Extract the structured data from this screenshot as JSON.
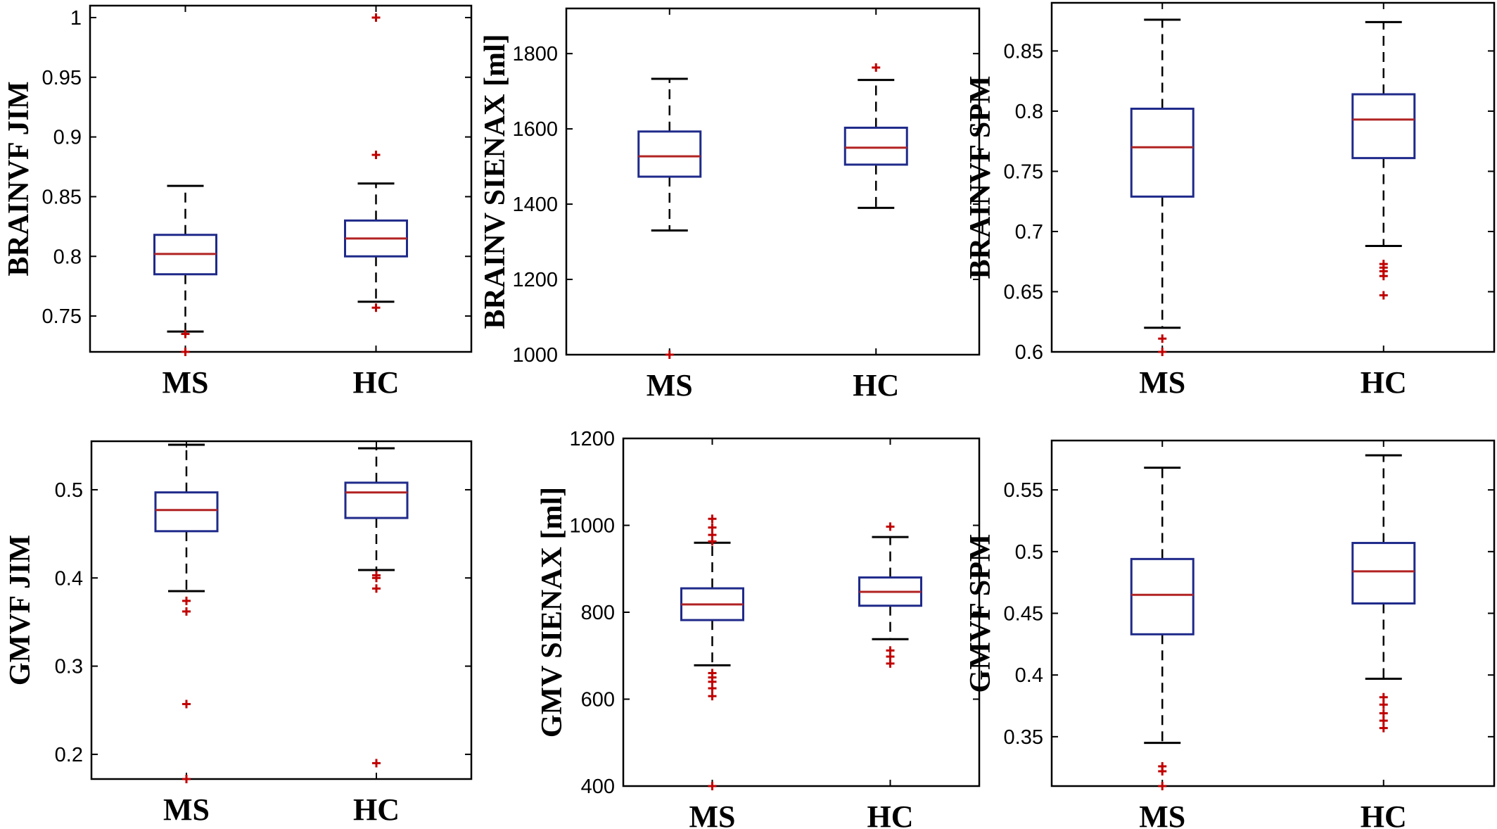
{
  "figure": {
    "colors": {
      "box": "#1f2a8a",
      "median": "#b22222",
      "whisker": "#000000",
      "outlier": "#c00000"
    }
  },
  "chart_data": [
    {
      "type": "box",
      "ylabel": "BRAINVF JIM",
      "ylim": [
        0.72,
        1.01
      ],
      "yticks": [
        0.75,
        0.8,
        0.85,
        0.9,
        0.95,
        1
      ],
      "ytick_labels": [
        "0.75",
        "0.8",
        "0.85",
        "0.9",
        "0.95",
        "1"
      ],
      "categories": [
        "MS",
        "HC"
      ],
      "boxes": [
        {
          "q1": 0.785,
          "median": 0.802,
          "q3": 0.818,
          "whisker_low": 0.737,
          "whisker_high": 0.859,
          "outliers": [
            0.735,
            0.72
          ]
        },
        {
          "q1": 0.8,
          "median": 0.815,
          "q3": 0.83,
          "whisker_low": 0.762,
          "whisker_high": 0.861,
          "outliers": [
            1.0,
            0.885,
            0.757
          ]
        }
      ]
    },
    {
      "type": "box",
      "ylabel": "BRAINV SIENAX [ml]",
      "ylim": [
        1000,
        1920
      ],
      "yticks": [
        1000,
        1200,
        1400,
        1600,
        1800
      ],
      "ytick_labels": [
        "1000",
        "1200",
        "1400",
        "1600",
        "1800"
      ],
      "categories": [
        "MS",
        "HC"
      ],
      "boxes": [
        {
          "q1": 1473,
          "median": 1527,
          "q3": 1593,
          "whisker_low": 1330,
          "whisker_high": 1733,
          "outliers": [
            1000
          ]
        },
        {
          "q1": 1505,
          "median": 1550,
          "q3": 1603,
          "whisker_low": 1390,
          "whisker_high": 1730,
          "outliers": [
            1763
          ]
        }
      ]
    },
    {
      "type": "box",
      "ylabel": "BRAINVF SPM",
      "ylim": [
        0.6,
        0.89
      ],
      "yticks": [
        0.6,
        0.65,
        0.7,
        0.75,
        0.8,
        0.85
      ],
      "ytick_labels": [
        "0.6",
        "0.65",
        "0.7",
        "0.75",
        "0.8",
        "0.85"
      ],
      "categories": [
        "MS",
        "HC"
      ],
      "boxes": [
        {
          "q1": 0.729,
          "median": 0.77,
          "q3": 0.802,
          "whisker_low": 0.62,
          "whisker_high": 0.876,
          "outliers": [
            0.611,
            0.6
          ]
        },
        {
          "q1": 0.761,
          "median": 0.793,
          "q3": 0.814,
          "whisker_low": 0.688,
          "whisker_high": 0.874,
          "outliers": [
            0.673,
            0.67,
            0.667,
            0.663,
            0.647
          ]
        }
      ]
    },
    {
      "type": "box",
      "ylabel": "GMVF JIM",
      "ylim": [
        0.172,
        0.555
      ],
      "yticks": [
        0.2,
        0.3,
        0.4,
        0.5
      ],
      "ytick_labels": [
        "0.2",
        "0.3",
        "0.4",
        "0.5"
      ],
      "categories": [
        "MS",
        "HC"
      ],
      "boxes": [
        {
          "q1": 0.453,
          "median": 0.477,
          "q3": 0.497,
          "whisker_low": 0.385,
          "whisker_high": 0.551,
          "outliers": [
            0.374,
            0.362,
            0.257,
            0.172
          ]
        },
        {
          "q1": 0.468,
          "median": 0.497,
          "q3": 0.508,
          "whisker_low": 0.409,
          "whisker_high": 0.547,
          "outliers": [
            0.403,
            0.4,
            0.388,
            0.19
          ]
        }
      ]
    },
    {
      "type": "box",
      "ylabel": "GMV SIENAX [ml]",
      "ylim": [
        400,
        1200
      ],
      "yticks": [
        400,
        600,
        800,
        1000,
        1200
      ],
      "ytick_labels": [
        "400",
        "600",
        "800",
        "1000",
        "1200"
      ],
      "categories": [
        "MS",
        "HC"
      ],
      "boxes": [
        {
          "q1": 782,
          "median": 818,
          "q3": 855,
          "whisker_low": 678,
          "whisker_high": 960,
          "outliers": [
            1015,
            995,
            978,
            963,
            660,
            650,
            640,
            625,
            607,
            400
          ]
        },
        {
          "q1": 815,
          "median": 847,
          "q3": 880,
          "whisker_low": 738,
          "whisker_high": 973,
          "outliers": [
            997,
            712,
            698,
            682
          ]
        }
      ]
    },
    {
      "type": "box",
      "ylabel": "GMVF SPM",
      "ylim": [
        0.31,
        0.59
      ],
      "yticks": [
        0.35,
        0.4,
        0.45,
        0.5,
        0.55
      ],
      "ytick_labels": [
        "0.35",
        "0.4",
        "0.45",
        "0.5",
        "0.55"
      ],
      "categories": [
        "MS",
        "HC"
      ],
      "boxes": [
        {
          "q1": 0.433,
          "median": 0.465,
          "q3": 0.494,
          "whisker_low": 0.345,
          "whisker_high": 0.568,
          "outliers": [
            0.326,
            0.322,
            0.31
          ]
        },
        {
          "q1": 0.458,
          "median": 0.484,
          "q3": 0.507,
          "whisker_low": 0.397,
          "whisker_high": 0.578,
          "outliers": [
            0.382,
            0.376,
            0.369,
            0.363,
            0.357
          ]
        }
      ]
    }
  ]
}
